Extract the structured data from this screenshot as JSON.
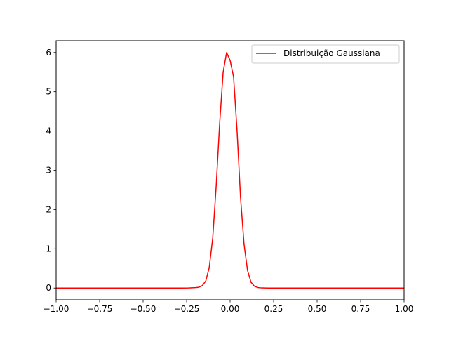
{
  "chart_data": {
    "type": "line",
    "title": "",
    "xlabel": "",
    "ylabel": "",
    "xlim": [
      -1.0,
      1.0
    ],
    "ylim": [
      -0.3,
      6.3
    ],
    "x_ticks": [
      -1.0,
      -0.75,
      -0.5,
      -0.25,
      0.0,
      0.25,
      0.5,
      0.75,
      1.0
    ],
    "x_tick_labels": [
      "−1.00",
      "−0.75",
      "−0.50",
      "−0.25",
      "0.00",
      "0.25",
      "0.50",
      "0.75",
      "1.00"
    ],
    "y_ticks": [
      0,
      1,
      2,
      3,
      4,
      5,
      6
    ],
    "y_tick_labels": [
      "0",
      "1",
      "2",
      "3",
      "4",
      "5",
      "6"
    ],
    "grid": false,
    "legend_position": "top-right",
    "series": [
      {
        "name": "Distribuição Gaussiana",
        "color": "#ff0000",
        "x": [
          -1.0,
          -0.96,
          -0.92,
          -0.88,
          -0.84,
          -0.8,
          -0.76,
          -0.72,
          -0.68,
          -0.64,
          -0.6,
          -0.56,
          -0.52,
          -0.48,
          -0.44,
          -0.4,
          -0.36,
          -0.32,
          -0.28,
          -0.24,
          -0.2,
          -0.18,
          -0.16,
          -0.14,
          -0.12,
          -0.1,
          -0.08,
          -0.06,
          -0.04,
          -0.02,
          0.0,
          0.02,
          0.04,
          0.06,
          0.08,
          0.1,
          0.12,
          0.14,
          0.16,
          0.18,
          0.2,
          0.22,
          0.24,
          0.26,
          0.28,
          0.32,
          0.36,
          0.4,
          0.44,
          0.48,
          0.52,
          0.56,
          0.6,
          0.64,
          0.68,
          0.72,
          0.76,
          0.8,
          0.84,
          0.88,
          0.92,
          0.96,
          1.0
        ],
        "y": [
          0,
          0,
          0,
          0,
          0,
          0,
          0,
          0,
          0,
          0,
          0,
          0,
          0,
          0,
          0,
          0,
          0,
          0,
          0,
          0.002,
          0.01,
          0.02,
          0.06,
          0.18,
          0.52,
          1.27,
          2.6,
          4.2,
          5.5,
          6.0,
          5.8,
          5.38,
          4.0,
          2.3,
          1.12,
          0.45,
          0.15,
          0.045,
          0.012,
          0.003,
          0.001,
          0,
          0,
          0,
          0,
          0,
          0,
          0,
          0,
          0,
          0,
          0,
          0,
          0,
          0,
          0,
          0,
          0,
          0,
          0,
          0,
          0,
          0
        ]
      }
    ]
  }
}
